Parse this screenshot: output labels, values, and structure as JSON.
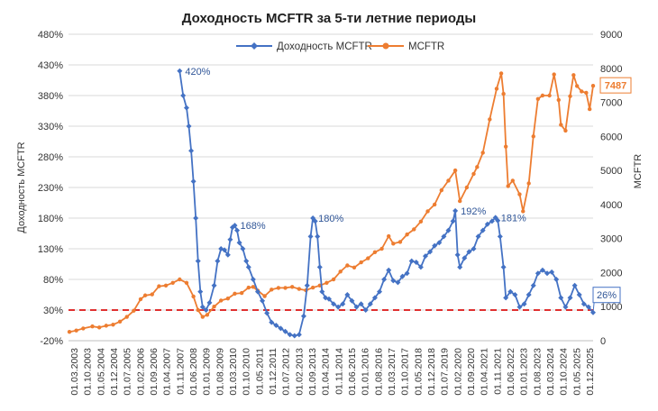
{
  "chart_data": {
    "type": "line",
    "title": "Доходность  MCFTR  за 5-ти летние периоды",
    "ylabel_left": "Доходность  MCFTR",
    "ylabel_right": "MCFTR",
    "left_axis": {
      "min": -20,
      "max": 480,
      "step": 50,
      "tick_labels": [
        "-20%",
        "30%",
        "80%",
        "130%",
        "180%",
        "230%",
        "280%",
        "330%",
        "380%",
        "430%",
        "480%"
      ]
    },
    "right_axis": {
      "min": 0,
      "max": 9000,
      "step": 1000,
      "tick_labels": [
        "0",
        "1000",
        "2000",
        "3000",
        "4000",
        "5000",
        "6000",
        "7000",
        "8000",
        "9000"
      ]
    },
    "x_labels": [
      "01.03.2003",
      "01.10.2003",
      "01.05.2004",
      "01.12.2004",
      "01.07.2005",
      "01.02.2006",
      "01.09.2006",
      "01.04.2007",
      "01.11.2007",
      "01.06.2008",
      "01.01.2009",
      "01.08.2009",
      "01.03.2010",
      "01.10.2010",
      "01.05.2011",
      "01.12.2011",
      "01.07.2012",
      "01.02.2013",
      "01.09.2013",
      "01.04.2014",
      "01.11.2014",
      "01.06.2015",
      "01.01.2016",
      "01.08.2016",
      "01.03.2017",
      "01.10.2017",
      "01.05.2018",
      "01.12.2018",
      "01.07.2019",
      "01.02.2020",
      "01.09.2020",
      "01.04.2021",
      "01.11.2021",
      "01.06.2022",
      "01.01.2023",
      "01.08.2023",
      "01.03.2024",
      "01.10.2024",
      "01.05.2025",
      "01.12.2025"
    ],
    "reference_line": {
      "value": 30,
      "axis": "left",
      "color": "#e03030",
      "style": "dashed"
    },
    "series": [
      {
        "name": "Доходность MCFTR",
        "axis": "left",
        "color": "#4472c4",
        "marker": "diamond",
        "points": [
          [
            2008.0,
            420
          ],
          [
            2008.15,
            380
          ],
          [
            2008.3,
            360
          ],
          [
            2008.4,
            330
          ],
          [
            2008.5,
            290
          ],
          [
            2008.6,
            240
          ],
          [
            2008.7,
            180
          ],
          [
            2008.8,
            110
          ],
          [
            2008.9,
            60
          ],
          [
            2009.0,
            35
          ],
          [
            2009.15,
            30
          ],
          [
            2009.3,
            42
          ],
          [
            2009.5,
            70
          ],
          [
            2009.65,
            110
          ],
          [
            2009.8,
            130
          ],
          [
            2009.95,
            128
          ],
          [
            2010.1,
            120
          ],
          [
            2010.2,
            145
          ],
          [
            2010.3,
            165
          ],
          [
            2010.4,
            168
          ],
          [
            2010.5,
            160
          ],
          [
            2010.6,
            140
          ],
          [
            2010.75,
            130
          ],
          [
            2010.9,
            110
          ],
          [
            2011.0,
            100
          ],
          [
            2011.2,
            80
          ],
          [
            2011.4,
            60
          ],
          [
            2011.6,
            45
          ],
          [
            2011.8,
            25
          ],
          [
            2012.0,
            10
          ],
          [
            2012.2,
            5
          ],
          [
            2012.4,
            0
          ],
          [
            2012.6,
            -5
          ],
          [
            2012.8,
            -10
          ],
          [
            2013.0,
            -12
          ],
          [
            2013.2,
            -10
          ],
          [
            2013.4,
            20
          ],
          [
            2013.55,
            70
          ],
          [
            2013.7,
            150
          ],
          [
            2013.8,
            180
          ],
          [
            2013.9,
            175
          ],
          [
            2014.0,
            150
          ],
          [
            2014.1,
            100
          ],
          [
            2014.2,
            60
          ],
          [
            2014.35,
            50
          ],
          [
            2014.5,
            48
          ],
          [
            2014.7,
            40
          ],
          [
            2014.9,
            35
          ],
          [
            2015.1,
            40
          ],
          [
            2015.3,
            55
          ],
          [
            2015.5,
            45
          ],
          [
            2015.7,
            35
          ],
          [
            2015.9,
            40
          ],
          [
            2016.1,
            30
          ],
          [
            2016.3,
            40
          ],
          [
            2016.5,
            50
          ],
          [
            2016.7,
            60
          ],
          [
            2016.9,
            80
          ],
          [
            2017.1,
            95
          ],
          [
            2017.3,
            78
          ],
          [
            2017.5,
            75
          ],
          [
            2017.7,
            85
          ],
          [
            2017.9,
            90
          ],
          [
            2018.1,
            110
          ],
          [
            2018.3,
            108
          ],
          [
            2018.5,
            100
          ],
          [
            2018.7,
            118
          ],
          [
            2018.9,
            125
          ],
          [
            2019.1,
            135
          ],
          [
            2019.3,
            140
          ],
          [
            2019.5,
            150
          ],
          [
            2019.7,
            160
          ],
          [
            2019.9,
            175
          ],
          [
            2020.0,
            192
          ],
          [
            2020.1,
            120
          ],
          [
            2020.2,
            100
          ],
          [
            2020.4,
            115
          ],
          [
            2020.6,
            125
          ],
          [
            2020.8,
            130
          ],
          [
            2021.0,
            150
          ],
          [
            2021.2,
            160
          ],
          [
            2021.4,
            170
          ],
          [
            2021.6,
            175
          ],
          [
            2021.75,
            181
          ],
          [
            2021.85,
            176
          ],
          [
            2021.95,
            150
          ],
          [
            2022.1,
            100
          ],
          [
            2022.2,
            50
          ],
          [
            2022.4,
            60
          ],
          [
            2022.6,
            55
          ],
          [
            2022.8,
            35
          ],
          [
            2023.0,
            40
          ],
          [
            2023.2,
            55
          ],
          [
            2023.4,
            70
          ],
          [
            2023.6,
            90
          ],
          [
            2023.8,
            95
          ],
          [
            2024.0,
            90
          ],
          [
            2024.2,
            92
          ],
          [
            2024.4,
            80
          ],
          [
            2024.6,
            50
          ],
          [
            2024.8,
            35
          ],
          [
            2025.0,
            50
          ],
          [
            2025.2,
            70
          ],
          [
            2025.4,
            55
          ],
          [
            2025.6,
            40
          ],
          [
            2025.8,
            35
          ],
          [
            2026.0,
            26
          ]
        ]
      },
      {
        "name": "MCFTR",
        "axis": "right",
        "color": "#ed7d31",
        "marker": "circle",
        "points": [
          [
            2003.2,
            260
          ],
          [
            2003.5,
            300
          ],
          [
            2003.8,
            360
          ],
          [
            2004.2,
            420
          ],
          [
            2004.5,
            390
          ],
          [
            2004.8,
            440
          ],
          [
            2005.1,
            470
          ],
          [
            2005.4,
            560
          ],
          [
            2005.7,
            700
          ],
          [
            2006.0,
            880
          ],
          [
            2006.3,
            1220
          ],
          [
            2006.5,
            1330
          ],
          [
            2006.8,
            1360
          ],
          [
            2007.1,
            1600
          ],
          [
            2007.4,
            1620
          ],
          [
            2007.7,
            1700
          ],
          [
            2008.0,
            1800
          ],
          [
            2008.3,
            1700
          ],
          [
            2008.6,
            1300
          ],
          [
            2008.8,
            900
          ],
          [
            2009.0,
            700
          ],
          [
            2009.2,
            760
          ],
          [
            2009.5,
            1000
          ],
          [
            2009.8,
            1180
          ],
          [
            2010.1,
            1240
          ],
          [
            2010.4,
            1380
          ],
          [
            2010.7,
            1400
          ],
          [
            2011.0,
            1560
          ],
          [
            2011.2,
            1580
          ],
          [
            2011.4,
            1470
          ],
          [
            2011.7,
            1310
          ],
          [
            2012.0,
            1500
          ],
          [
            2012.3,
            1550
          ],
          [
            2012.6,
            1550
          ],
          [
            2012.9,
            1580
          ],
          [
            2013.2,
            1520
          ],
          [
            2013.5,
            1480
          ],
          [
            2013.8,
            1560
          ],
          [
            2014.1,
            1620
          ],
          [
            2014.4,
            1700
          ],
          [
            2014.7,
            1800
          ],
          [
            2015.0,
            2030
          ],
          [
            2015.3,
            2210
          ],
          [
            2015.6,
            2150
          ],
          [
            2015.9,
            2300
          ],
          [
            2016.2,
            2420
          ],
          [
            2016.5,
            2600
          ],
          [
            2016.8,
            2700
          ],
          [
            2017.1,
            3070
          ],
          [
            2017.3,
            2850
          ],
          [
            2017.6,
            2900
          ],
          [
            2017.9,
            3120
          ],
          [
            2018.2,
            3270
          ],
          [
            2018.5,
            3500
          ],
          [
            2018.8,
            3800
          ],
          [
            2019.1,
            4000
          ],
          [
            2019.4,
            4420
          ],
          [
            2019.7,
            4700
          ],
          [
            2020.0,
            5000
          ],
          [
            2020.2,
            4100
          ],
          [
            2020.5,
            4500
          ],
          [
            2020.8,
            4900
          ],
          [
            2020.95,
            5100
          ],
          [
            2021.2,
            5520
          ],
          [
            2021.5,
            6500
          ],
          [
            2021.8,
            7400
          ],
          [
            2022.0,
            7850
          ],
          [
            2022.1,
            7250
          ],
          [
            2022.2,
            5700
          ],
          [
            2022.3,
            4540
          ],
          [
            2022.5,
            4700
          ],
          [
            2022.8,
            4300
          ],
          [
            2022.95,
            3800
          ],
          [
            2023.2,
            4620
          ],
          [
            2023.4,
            6000
          ],
          [
            2023.6,
            7100
          ],
          [
            2023.8,
            7200
          ],
          [
            2024.1,
            7200
          ],
          [
            2024.3,
            7820
          ],
          [
            2024.5,
            7070
          ],
          [
            2024.6,
            6340
          ],
          [
            2024.8,
            6170
          ],
          [
            2025.0,
            7180
          ],
          [
            2025.15,
            7800
          ],
          [
            2025.3,
            7480
          ],
          [
            2025.5,
            7320
          ],
          [
            2025.7,
            7280
          ],
          [
            2025.85,
            6800
          ],
          [
            2026.0,
            7487
          ]
        ]
      }
    ],
    "annotations": [
      {
        "text": "420%",
        "x": 2008.0,
        "value": 420,
        "axis": "left"
      },
      {
        "text": "168%",
        "x": 2010.4,
        "value": 168,
        "axis": "left"
      },
      {
        "text": "180%",
        "x": 2013.8,
        "value": 180,
        "axis": "left"
      },
      {
        "text": "192%",
        "x": 2020.0,
        "value": 192,
        "axis": "left"
      },
      {
        "text": "181%",
        "x": 2021.75,
        "value": 181,
        "axis": "left"
      }
    ],
    "last_value_labels": {
      "return": "26%",
      "index": "7487"
    }
  }
}
